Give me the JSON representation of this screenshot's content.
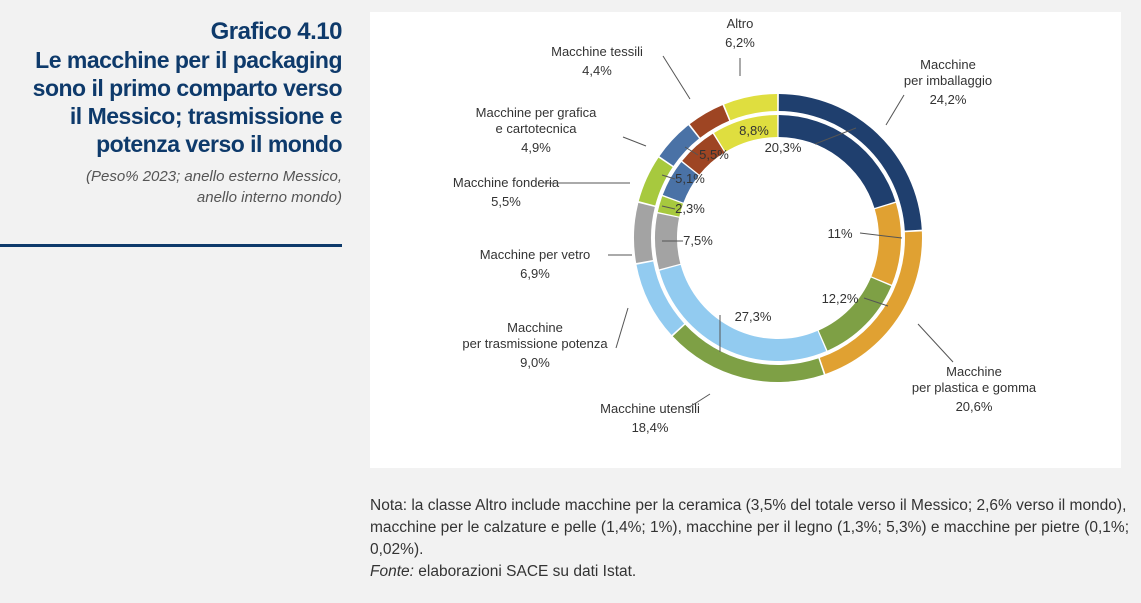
{
  "header": {
    "figure_number": "Grafico 4.10",
    "title_lines": [
      "Le macchine per il packaging",
      "sono il primo comparto verso",
      "il Messico; trasmissione e",
      "potenza verso il mondo"
    ],
    "subtitle_lines": [
      "(Peso% 2023; anello esterno Messico,",
      "anello interno mondo)"
    ]
  },
  "chart_data": {
    "type": "pie",
    "variant": "nested-donut",
    "rings": [
      "Messico",
      "Mondo"
    ],
    "ring_placement": {
      "Messico": "outer",
      "Mondo": "inner"
    },
    "categories": [
      "Macchine per imballaggio",
      "Macchine per plastica e gomma",
      "Macchine utensili",
      "Macchine per trasmissione potenza",
      "Macchine per vetro",
      "Macchine fonderia",
      "Macchine per grafica e cartotecnica",
      "Macchine tessili",
      "Altro"
    ],
    "series": [
      {
        "name": "Messico",
        "values": [
          24.2,
          20.6,
          18.4,
          9.0,
          6.9,
          5.5,
          4.9,
          4.4,
          6.2
        ]
      },
      {
        "name": "Mondo",
        "values": [
          20.3,
          11.0,
          12.2,
          27.3,
          7.5,
          2.3,
          5.1,
          5.5,
          8.8
        ]
      }
    ],
    "colors": [
      "#1f3f6e",
      "#e0a132",
      "#7ea045",
      "#92cbf0",
      "#a3a3a3",
      "#a7c93e",
      "#4a72a6",
      "#9e4523",
      "#dfde3f"
    ],
    "outer_labels": [
      {
        "lines": [
          "Macchine",
          "per imballaggio"
        ],
        "value": "24,2%"
      },
      {
        "lines": [
          "Macchine",
          "per plastica e gomma"
        ],
        "value": "20,6%"
      },
      {
        "lines": [
          "Macchine utensili"
        ],
        "value": "18,4%"
      },
      {
        "lines": [
          "Macchine",
          "per trasmissione potenza"
        ],
        "value": "9,0%"
      },
      {
        "lines": [
          "Macchine per vetro"
        ],
        "value": "6,9%"
      },
      {
        "lines": [
          "Macchine fonderia"
        ],
        "value": "5,5%"
      },
      {
        "lines": [
          "Macchine per grafica",
          "e cartotecnica"
        ],
        "value": "4,9%"
      },
      {
        "lines": [
          "Macchine tessili"
        ],
        "value": "4,4%"
      },
      {
        "lines": [
          "Altro"
        ],
        "value": "6,2%"
      }
    ],
    "inner_labels": [
      "20,3%",
      "11%",
      "12,2%",
      "27,3%",
      "7,5%",
      "2,3%",
      "5,1%",
      "5,5%",
      "8,8%"
    ]
  },
  "note": {
    "prefix": "Nota: la classe Altro include macchine per la ceramica (3,5% del totale verso il Messico; 2,6% verso il mondo), macchine per le calzature e pelle (1,4%; 1%), macchine per il legno (1,3%; 5,3%) e macchine per pietre (0,1%; 0,02%).",
    "source_label": "Fonte:",
    "source_text": " elaborazioni SACE su dati Istat."
  }
}
